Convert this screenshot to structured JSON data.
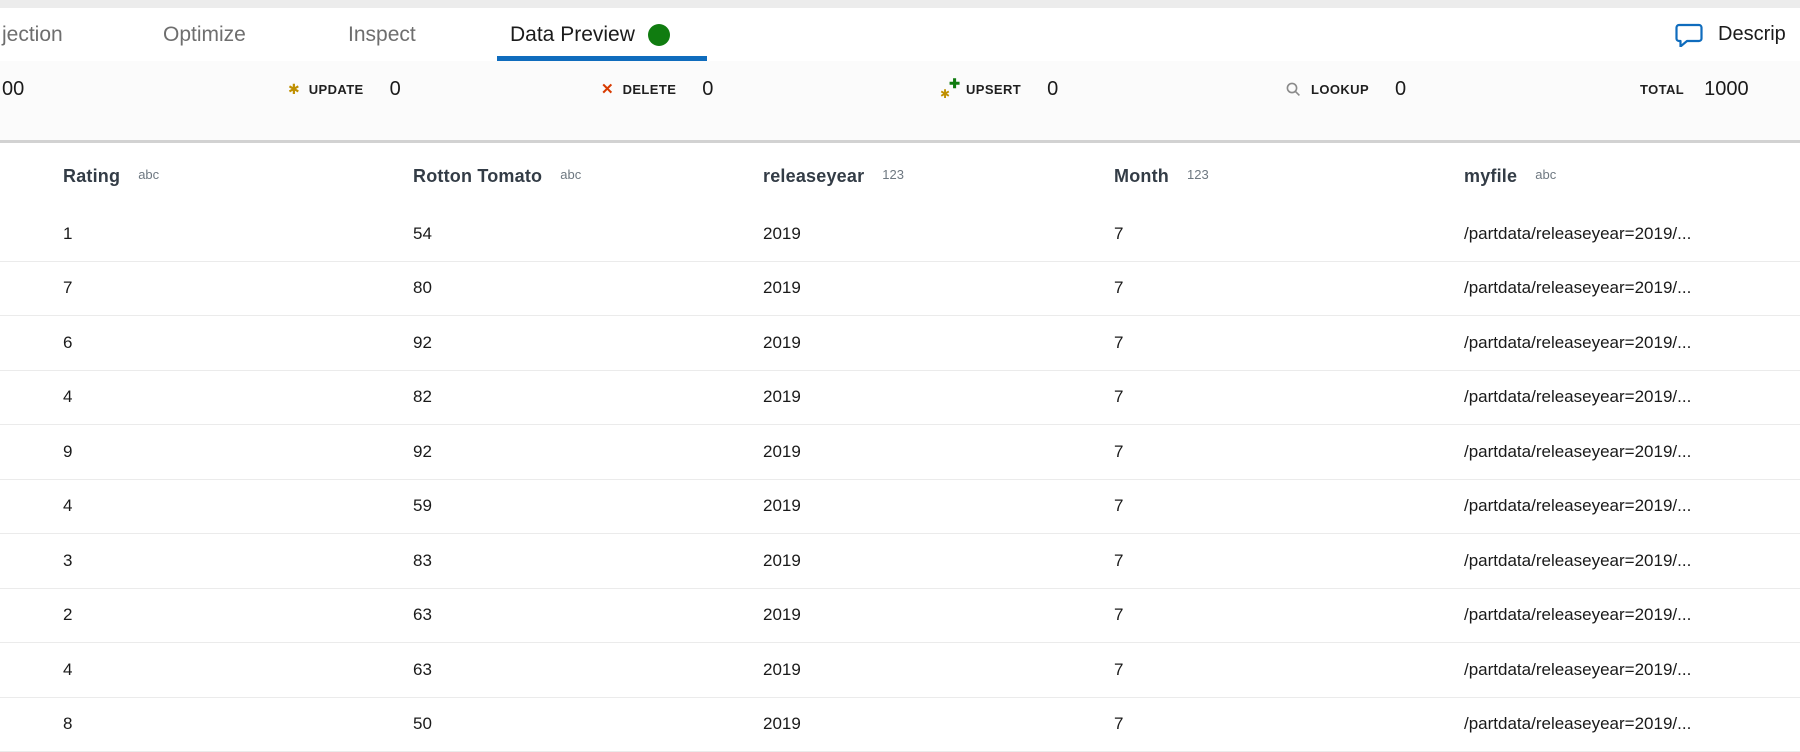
{
  "tab_bar": {
    "tabs": [
      {
        "label": "jection",
        "active": false
      },
      {
        "label": "Optimize",
        "active": false
      },
      {
        "label": "Inspect",
        "active": false
      },
      {
        "label": "Data Preview",
        "active": true,
        "has_status_dot": true
      }
    ],
    "status_dot_color": "#107c10",
    "underline_color": "#0f6cbd",
    "description_button": {
      "label": "Descrip",
      "icon": "comment-bubble",
      "icon_color": "#0f6cbd"
    }
  },
  "stats_bar": {
    "items": [
      {
        "icon": "none",
        "label": "",
        "count": "00"
      },
      {
        "icon": "update-asterisk",
        "label": "UPDATE",
        "count": "0"
      },
      {
        "icon": "delete-x",
        "label": "DELETE",
        "count": "0"
      },
      {
        "icon": "upsert-asterisk-plus",
        "label": "UPSERT",
        "count": "0"
      },
      {
        "icon": "lookup-magnifier",
        "label": "LOOKUP",
        "count": "0"
      },
      {
        "icon": "none",
        "label": "TOTAL",
        "count": "1000"
      }
    ],
    "colors": {
      "update_asterisk": "#bf8f00",
      "delete_x": "#d83b01",
      "upsert_asterisk": "#bf8f00",
      "upsert_plus": "#107c10",
      "lookup_magnifier": "#8a8a8a"
    }
  },
  "table": {
    "columns": [
      {
        "name": "Rating",
        "type": "abc"
      },
      {
        "name": "Rotton Tomato",
        "type": "abc"
      },
      {
        "name": "releaseyear",
        "type": "123"
      },
      {
        "name": "Month",
        "type": "123"
      },
      {
        "name": "myfile",
        "type": "abc"
      }
    ],
    "rows": [
      [
        "1",
        "54",
        "2019",
        "7",
        "/partdata/releaseyear=2019/..."
      ],
      [
        "7",
        "80",
        "2019",
        "7",
        "/partdata/releaseyear=2019/..."
      ],
      [
        "6",
        "92",
        "2019",
        "7",
        "/partdata/releaseyear=2019/..."
      ],
      [
        "4",
        "82",
        "2019",
        "7",
        "/partdata/releaseyear=2019/..."
      ],
      [
        "9",
        "92",
        "2019",
        "7",
        "/partdata/releaseyear=2019/..."
      ],
      [
        "4",
        "59",
        "2019",
        "7",
        "/partdata/releaseyear=2019/..."
      ],
      [
        "3",
        "83",
        "2019",
        "7",
        "/partdata/releaseyear=2019/..."
      ],
      [
        "2",
        "63",
        "2019",
        "7",
        "/partdata/releaseyear=2019/..."
      ],
      [
        "4",
        "63",
        "2019",
        "7",
        "/partdata/releaseyear=2019/..."
      ],
      [
        "8",
        "50",
        "2019",
        "7",
        "/partdata/releaseyear=2019/..."
      ]
    ]
  }
}
